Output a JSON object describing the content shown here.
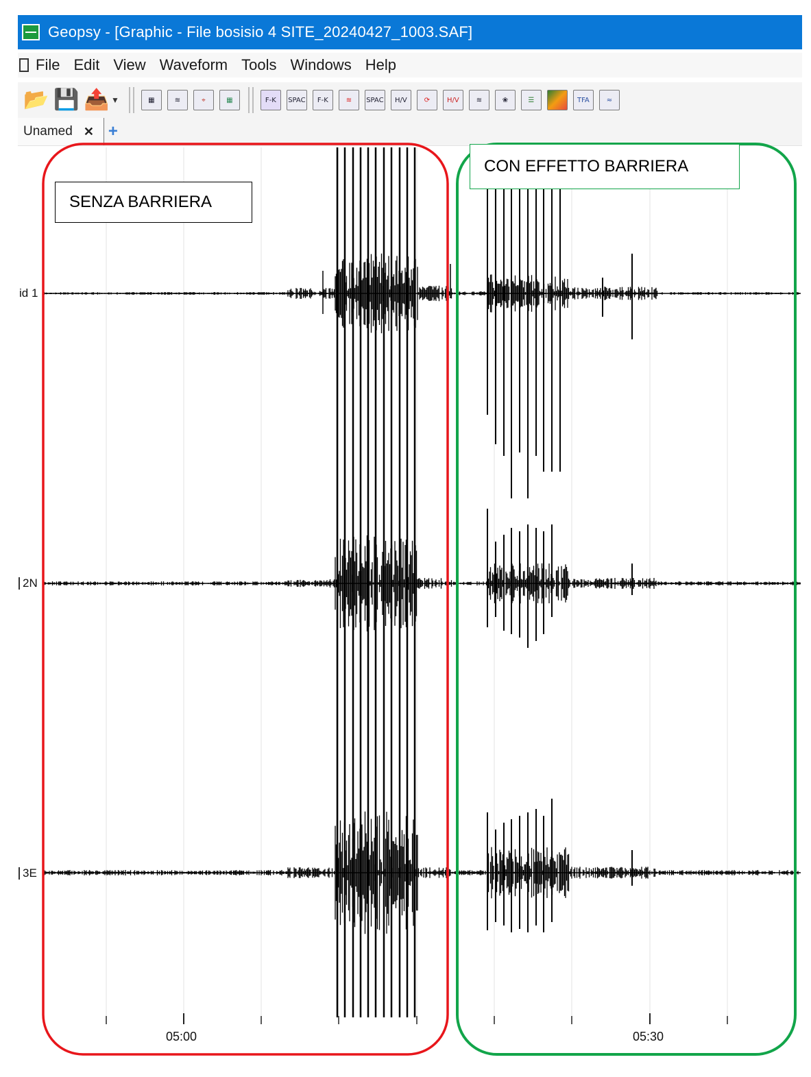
{
  "window": {
    "title": "Geopsy - [Graphic - File bosisio 4  SITE_20240427_1003.SAF]",
    "app_icon": "geopsy-app-icon"
  },
  "menu": [
    "File",
    "Edit",
    "View",
    "Waveform",
    "Tools",
    "Windows",
    "Help"
  ],
  "toolbar": {
    "file_buttons": [
      "open-folder-icon",
      "save-disk-icon",
      "export-icon"
    ],
    "view_buttons": [
      "table-icon",
      "graphic-icon",
      "map-icon",
      "chart-icon"
    ],
    "tool_buttons": [
      {
        "icon": "fk-icon",
        "text": "F-K"
      },
      {
        "icon": "spac-icon",
        "text": "SPAC"
      },
      {
        "icon": "fk-linear-icon",
        "text": "F-K"
      },
      {
        "icon": "waveform-red-icon",
        "text": ""
      },
      {
        "icon": "spac-curve-icon",
        "text": "SPAC"
      },
      {
        "icon": "hv-icon",
        "text": "H/V"
      },
      {
        "icon": "rotate-icon",
        "text": ""
      },
      {
        "icon": "hv-rotate-icon",
        "text": "H/V"
      },
      {
        "icon": "wave-stack-icon",
        "text": ""
      },
      {
        "icon": "polarization-icon",
        "text": ""
      },
      {
        "icon": "structure-icon",
        "text": ""
      },
      {
        "icon": "spectrogram-icon",
        "text": ""
      },
      {
        "icon": "tfa-icon",
        "text": "TFA"
      },
      {
        "icon": "spectrum-icon",
        "text": ""
      }
    ]
  },
  "tabs": [
    {
      "label": "Unamed",
      "close": "✕"
    }
  ],
  "tab_add": "+",
  "chart_data": {
    "type": "line",
    "title": "",
    "xlabel": "",
    "ylabel": "",
    "x_ticks": [
      "05:00",
      "05:30"
    ],
    "grid": "vertical",
    "series": [
      {
        "name": "id 1",
        "baseline_label": "id 1"
      },
      {
        "name": "2N",
        "baseline_label": "2N"
      },
      {
        "name": "3E",
        "baseline_label": "3E"
      }
    ]
  },
  "annotations": [
    {
      "text": "SENZA BARRIERA",
      "color": "#e8161b"
    },
    {
      "text": "CON EFFETTO BARRIERA",
      "color": "#12a54a"
    }
  ]
}
